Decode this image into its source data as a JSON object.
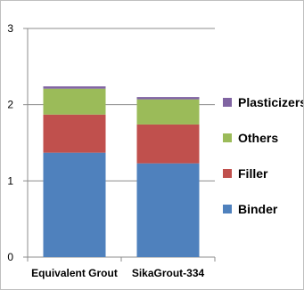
{
  "chart_data": {
    "type": "bar",
    "stacked": true,
    "title": "",
    "xlabel": "",
    "ylabel": "",
    "categories": [
      "Equivalent Grout",
      "SikaGrout-334"
    ],
    "ylim": [
      0,
      3
    ],
    "yticks": [
      0,
      1,
      2,
      3
    ],
    "grid": true,
    "legend_position": "right",
    "series": [
      {
        "name": "Binder",
        "color": "#4f81bd",
        "values": [
          1.37,
          1.23
        ]
      },
      {
        "name": "Filler",
        "color": "#c0504d",
        "values": [
          0.5,
          0.51
        ]
      },
      {
        "name": "Others",
        "color": "#9bbb59",
        "values": [
          0.34,
          0.33
        ]
      },
      {
        "name": "Plasticizers",
        "color": "#8064a2",
        "values": [
          0.03,
          0.03
        ]
      }
    ],
    "legend_order": [
      "Plasticizers",
      "Others",
      "Filler",
      "Binder"
    ]
  }
}
